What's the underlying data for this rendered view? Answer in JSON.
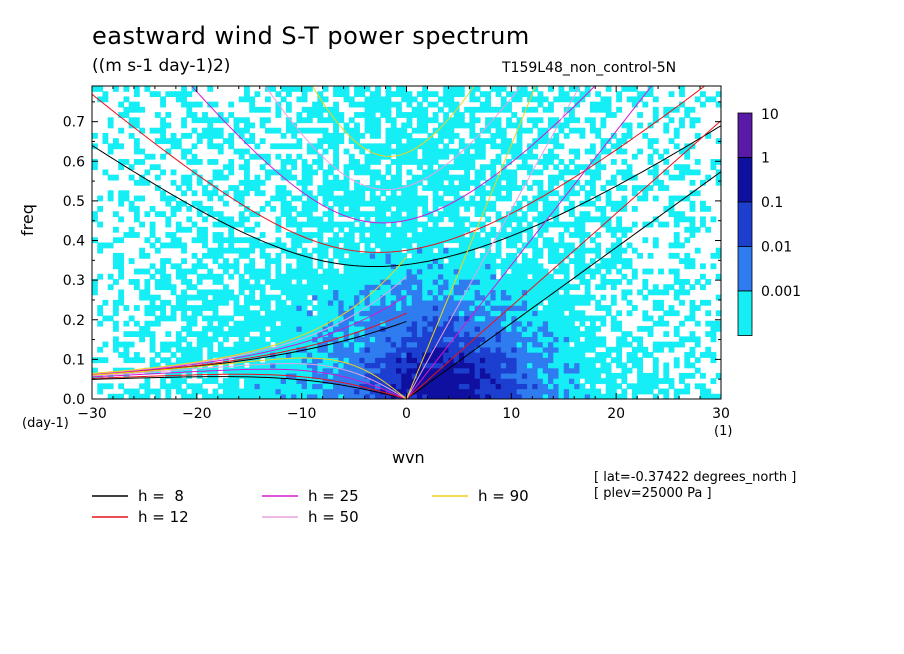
{
  "chart_data": {
    "type": "heatmap",
    "title": "eastward wind S-T power spectrum",
    "units": "((m s-1 day-1)2)",
    "run_name": "T159L48_non_control-5N",
    "xlabel": "wvn",
    "ylabel": "freq",
    "y_unit": "(day-1)",
    "x_unit": "(1)",
    "xlim": [
      -30,
      30
    ],
    "ylim": [
      0,
      0.79
    ],
    "x_ticks": [
      "-30",
      "-20",
      "-10",
      "0",
      "10",
      "20",
      "30"
    ],
    "y_ticks": [
      "0.0",
      "0.1",
      "0.2",
      "0.3",
      "0.4",
      "0.5",
      "0.6",
      "0.7"
    ],
    "colorbar": {
      "levels": [
        "10",
        "1",
        "0.1",
        "0.01",
        "0.001"
      ],
      "colors": [
        "#5a1aa8",
        "#1010a0",
        "#1c3fd0",
        "#2f7cf0",
        "#16eef6"
      ]
    },
    "dispersion_curves": [
      {
        "label": "h =  8",
        "h": 8,
        "color": "#000000"
      },
      {
        "label": "h = 12",
        "h": 12,
        "color": "#e8121b"
      },
      {
        "label": "h = 25",
        "h": 25,
        "color": "#d21ad2"
      },
      {
        "label": "h = 50",
        "h": 50,
        "color": "#e8a0e0"
      },
      {
        "label": "h = 90",
        "h": 90,
        "color": "#f2d21a"
      }
    ],
    "annotations": [
      "[ lat=-0.37422 degrees_north ]",
      "[ plev=25000 Pa ]"
    ]
  }
}
